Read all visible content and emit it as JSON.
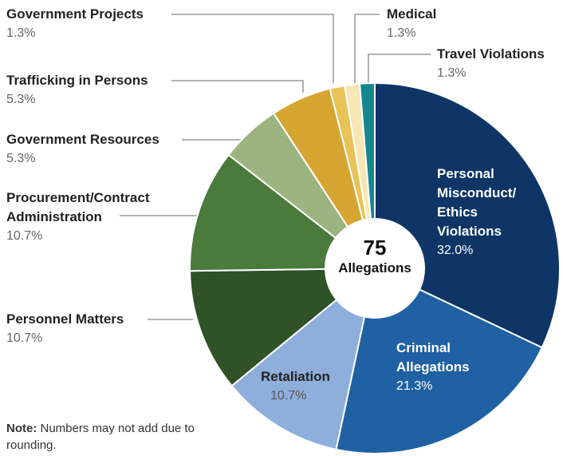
{
  "chart_data": {
    "type": "pie",
    "categories": [
      "Personal Misconduct/ Ethics Violations",
      "Criminal Allegations",
      "Retaliation",
      "Personnel Matters",
      "Procurement/Contract Administration",
      "Government Resources",
      "Trafficking in Persons",
      "Government Projects",
      "Medical",
      "Travel Violations"
    ],
    "values": [
      32.0,
      21.3,
      10.7,
      10.7,
      10.7,
      5.3,
      5.3,
      1.3,
      1.3,
      1.3
    ],
    "value_labels": [
      "32.0%",
      "21.3%",
      "10.7%",
      "10.7%",
      "10.7%",
      "5.3%",
      "5.3%",
      "1.3%",
      "1.3%",
      "1.3%"
    ],
    "colors": [
      "#0e3566",
      "#1f61a3",
      "#8eaedb",
      "#2f5227",
      "#4b7a3d",
      "#9cb47f",
      "#d6a532",
      "#e8c357",
      "#f6e7b4",
      "#16878f"
    ],
    "total": 75,
    "total_label": "Allegations",
    "note_label": "Note:",
    "note": "Numbers may not add due to rounding."
  }
}
